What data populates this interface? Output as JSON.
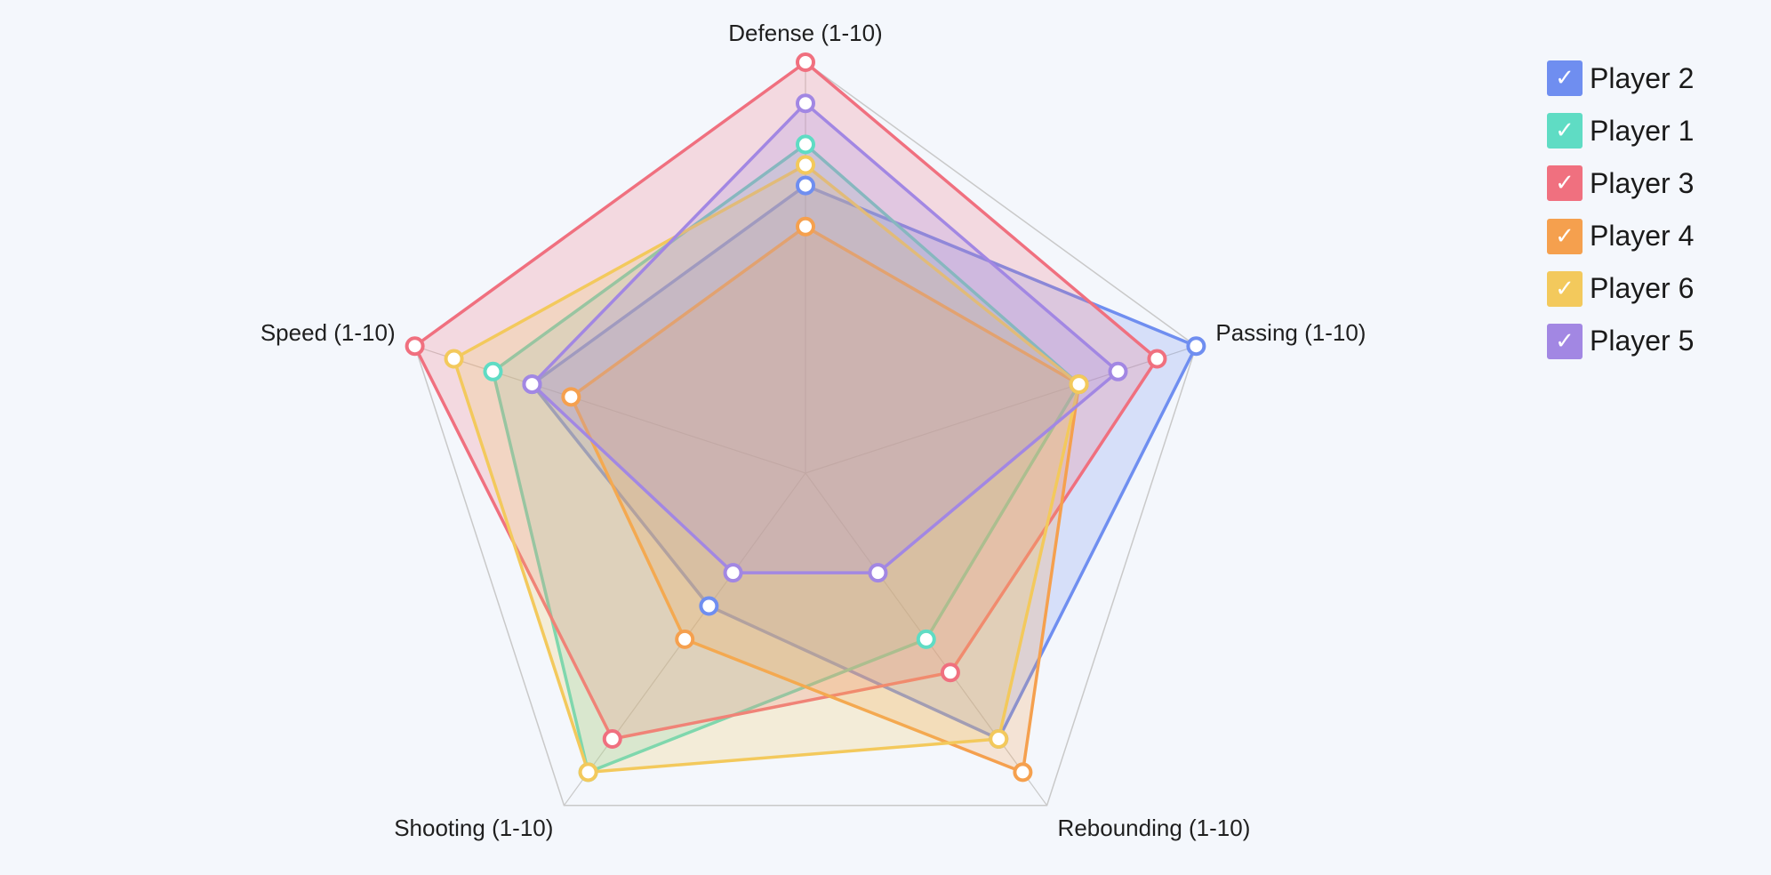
{
  "chart_data": {
    "type": "radar",
    "axes": [
      "Defense (1-10)",
      "Passing (1-10)",
      "Rebounding (1-10)",
      "Shooting (1-10)",
      "Speed (1-10)"
    ],
    "range": [
      0,
      10
    ],
    "grid": true,
    "legend_position": "top-right",
    "series": [
      {
        "name": "Player 2",
        "color": "#6f8ef0",
        "values": [
          7,
          10,
          8,
          4,
          7
        ]
      },
      {
        "name": "Player 1",
        "color": "#5fdcc4",
        "values": [
          8,
          7,
          5,
          9,
          8
        ]
      },
      {
        "name": "Player 3",
        "color": "#f0707f",
        "values": [
          10,
          9,
          6,
          8,
          10
        ]
      },
      {
        "name": "Player 4",
        "color": "#f5a04e",
        "values": [
          6,
          7,
          9,
          5,
          6
        ]
      },
      {
        "name": "Player 6",
        "color": "#f3c95c",
        "values": [
          7.5,
          7,
          8,
          9,
          9
        ]
      },
      {
        "name": "Player 5",
        "color": "#a287e3",
        "values": [
          9,
          8,
          3,
          3,
          7
        ]
      }
    ]
  },
  "legend": {
    "check_glyph": "✓",
    "items": [
      {
        "label": "Player 2",
        "color": "#6f8ef0"
      },
      {
        "label": "Player 1",
        "color": "#5fdcc4"
      },
      {
        "label": "Player 3",
        "color": "#f0707f"
      },
      {
        "label": "Player 4",
        "color": "#f5a04e"
      },
      {
        "label": "Player 6",
        "color": "#f3c95c"
      },
      {
        "label": "Player 5",
        "color": "#a287e3"
      }
    ]
  }
}
